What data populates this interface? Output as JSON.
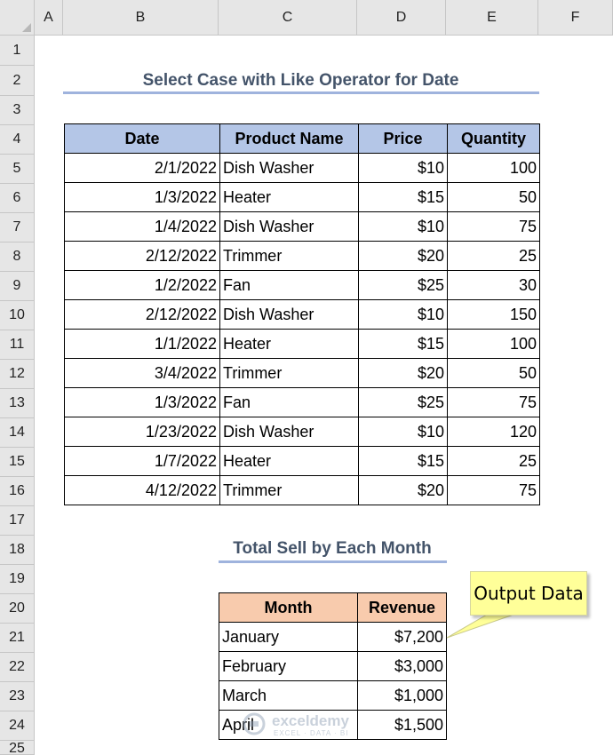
{
  "columns": [
    "A",
    "B",
    "C",
    "D",
    "E",
    "F"
  ],
  "rows": [
    "1",
    "2",
    "3",
    "4",
    "5",
    "6",
    "7",
    "8",
    "9",
    "10",
    "11",
    "12",
    "13",
    "14",
    "15",
    "16",
    "17",
    "18",
    "19",
    "20",
    "21",
    "22",
    "23",
    "24",
    "25"
  ],
  "title1": "Select Case with Like Operator for Date",
  "table1": {
    "headers": [
      "Date",
      "Product Name",
      "Price",
      "Quantity"
    ],
    "rows": [
      [
        "2/1/2022",
        "Dish Washer",
        "$10",
        "100"
      ],
      [
        "1/3/2022",
        "Heater",
        "$15",
        "50"
      ],
      [
        "1/4/2022",
        "Dish Washer",
        "$10",
        "75"
      ],
      [
        "2/12/2022",
        "Trimmer",
        "$20",
        "25"
      ],
      [
        "1/2/2022",
        "Fan",
        "$25",
        "30"
      ],
      [
        "2/12/2022",
        "Dish Washer",
        "$10",
        "150"
      ],
      [
        "1/1/2022",
        "Heater",
        "$15",
        "100"
      ],
      [
        "3/4/2022",
        "Trimmer",
        "$20",
        "50"
      ],
      [
        "1/3/2022",
        "Fan",
        "$25",
        "75"
      ],
      [
        "1/23/2022",
        "Dish Washer",
        "$10",
        "120"
      ],
      [
        "1/7/2022",
        "Heater",
        "$15",
        "25"
      ],
      [
        "4/12/2022",
        "Trimmer",
        "$20",
        "75"
      ]
    ]
  },
  "title2": "Total Sell by Each Month",
  "table2": {
    "headers": [
      "Month",
      "Revenue"
    ],
    "rows": [
      [
        "January",
        "$7,200"
      ],
      [
        "February",
        "$3,000"
      ],
      [
        "March",
        "$1,000"
      ],
      [
        "April",
        "$1,500"
      ]
    ]
  },
  "callout": "Output Data",
  "watermark": {
    "name": "exceldemy",
    "sub": "EXCEL · DATA · BI"
  },
  "colors": {
    "header_bg": "#e6e6e6",
    "table1_header": "#b4c6e7",
    "table2_header": "#f8cbad",
    "title_color": "#44546a",
    "title_underline": "#9fb3dd",
    "callout_bg": "#ffff99"
  }
}
